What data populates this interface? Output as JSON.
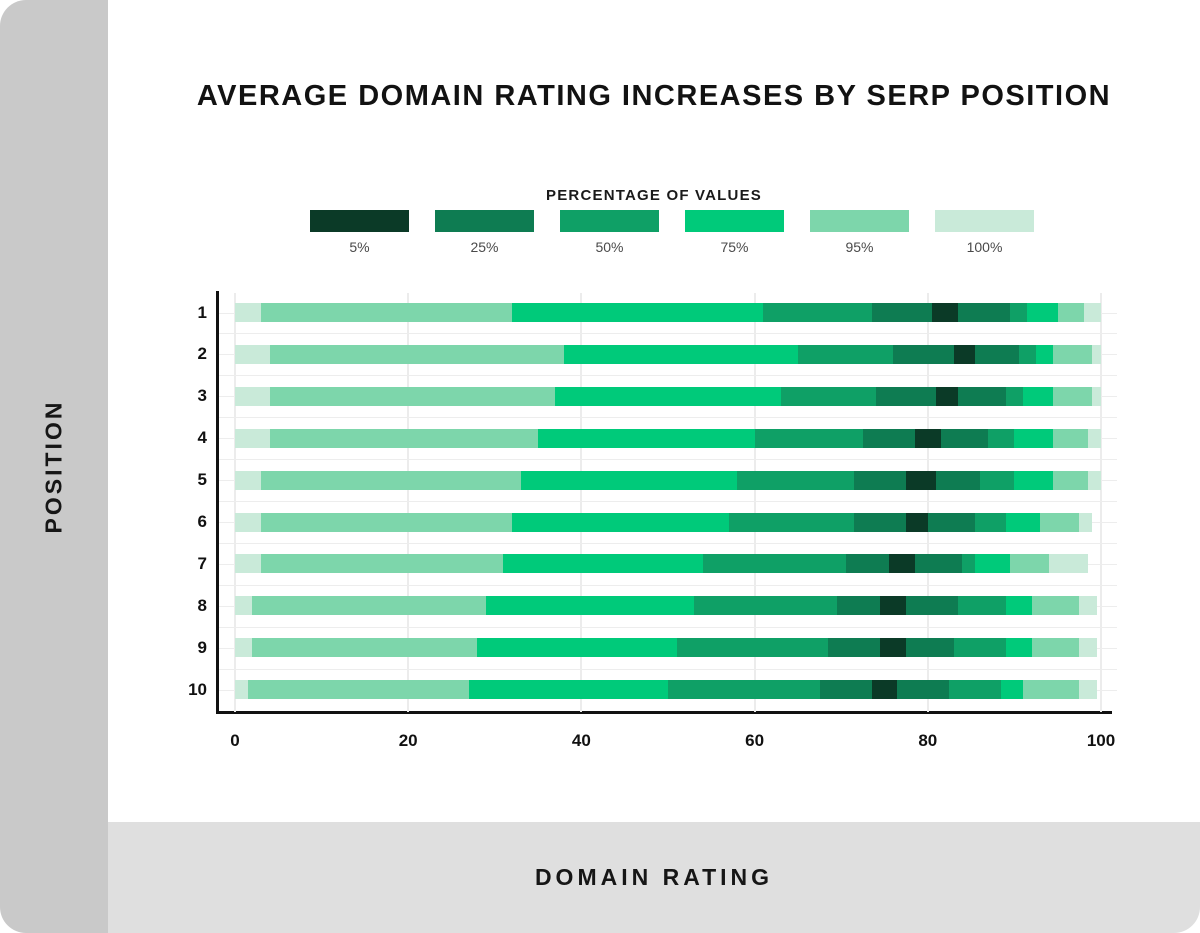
{
  "title": "AVERAGE DOMAIN RATING INCREASES BY SERP POSITION",
  "legend": {
    "title": "PERCENTAGE OF VALUES",
    "items": [
      {
        "label": "5%",
        "color": "#0b3a27"
      },
      {
        "label": "25%",
        "color": "#0e7c52"
      },
      {
        "label": "50%",
        "color": "#0fa066"
      },
      {
        "label": "75%",
        "color": "#00ca7a"
      },
      {
        "label": "95%",
        "color": "#7dd6ab"
      },
      {
        "label": "100%",
        "color": "#c9ead9"
      }
    ]
  },
  "axes": {
    "y_label": "POSITION",
    "x_label": "DOMAIN RATING",
    "x_ticks": [
      0,
      20,
      40,
      60,
      80,
      100
    ],
    "x_min": 0,
    "x_max": 100
  },
  "chart_data": {
    "type": "bar",
    "subtype": "horizontal-stacked-percentile",
    "title": "AVERAGE DOMAIN RATING INCREASES BY SERP POSITION",
    "xlabel": "DOMAIN RATING",
    "ylabel": "POSITION",
    "xlim": [
      0,
      100
    ],
    "grid": true,
    "legend_position": "top",
    "segment_percentiles": [
      "100%",
      "95%",
      "75%",
      "50%",
      "25%",
      "5%",
      "25%",
      "50%",
      "75%",
      "95%",
      "100%"
    ],
    "boundary_meaning": "domain-rating values at the edges of each percentile band, low to high",
    "rows": [
      {
        "position": "1",
        "boundaries": [
          0,
          3,
          32,
          61,
          73.5,
          80.5,
          83.5,
          89.5,
          91.5,
          95,
          98,
          100
        ]
      },
      {
        "position": "2",
        "boundaries": [
          0,
          4,
          38,
          65,
          76,
          83,
          85.5,
          90.5,
          92.5,
          94.5,
          99,
          100
        ]
      },
      {
        "position": "3",
        "boundaries": [
          0,
          4,
          37,
          63,
          74,
          81,
          83.5,
          89,
          91,
          94.5,
          99,
          100
        ]
      },
      {
        "position": "4",
        "boundaries": [
          0,
          4,
          35,
          60,
          72.5,
          78.5,
          81.5,
          87,
          90,
          94.5,
          98.5,
          100
        ]
      },
      {
        "position": "5",
        "boundaries": [
          0,
          3,
          33,
          58,
          71.5,
          77.5,
          81,
          86,
          90,
          94.5,
          98.5,
          100
        ]
      },
      {
        "position": "6",
        "boundaries": [
          0,
          3,
          32,
          57,
          71.5,
          77.5,
          80,
          85.5,
          89,
          93,
          97.5,
          99
        ]
      },
      {
        "position": "7",
        "boundaries": [
          0,
          3,
          31,
          54,
          70.5,
          75.5,
          78.5,
          84,
          85.5,
          89.5,
          94,
          98.5
        ]
      },
      {
        "position": "8",
        "boundaries": [
          0,
          2,
          29,
          53,
          69.5,
          74.5,
          77.5,
          83.5,
          89,
          92,
          97.5,
          99.5
        ]
      },
      {
        "position": "9",
        "boundaries": [
          0,
          2,
          28,
          51,
          68.5,
          74.5,
          77.5,
          83,
          89,
          92,
          97.5,
          99.5
        ]
      },
      {
        "position": "10",
        "boundaries": [
          0,
          1.5,
          27,
          50,
          67.5,
          73.5,
          76.5,
          82.5,
          88.5,
          91,
          97.5,
          99.5
        ]
      }
    ]
  }
}
